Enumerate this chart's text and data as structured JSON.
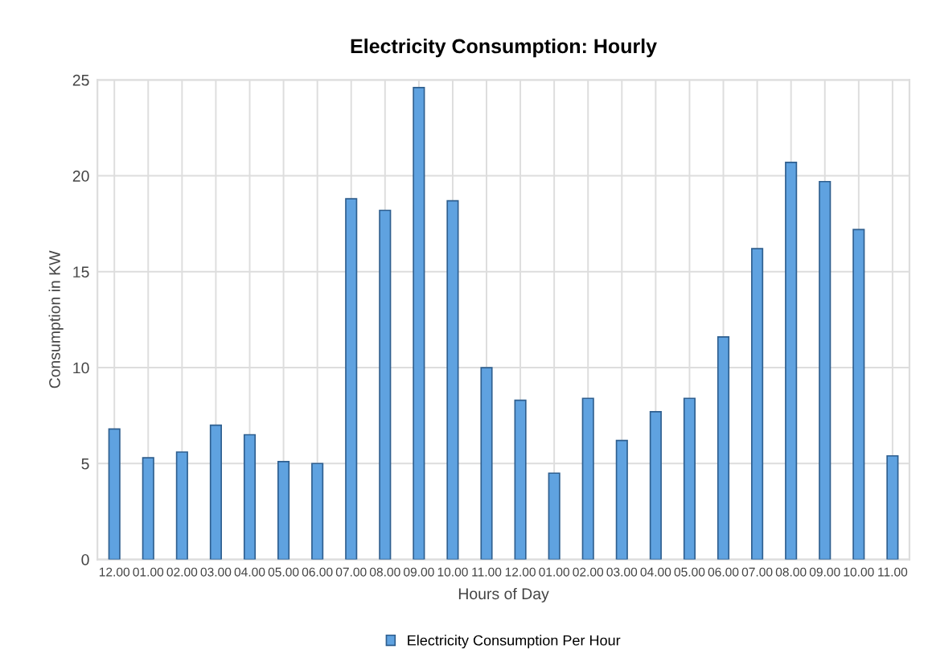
{
  "chart_data": {
    "type": "bar",
    "title": "Electricity Consumption: Hourly",
    "xlabel": "Hours of Day",
    "ylabel": "Consumption in KW",
    "categories": [
      "12.00",
      "01.00",
      "02.00",
      "03.00",
      "04.00",
      "05.00",
      "06.00",
      "07.00",
      "08.00",
      "09.00",
      "10.00",
      "11.00",
      "12.00",
      "01.00",
      "02.00",
      "03.00",
      "04.00",
      "05.00",
      "06.00",
      "07.00",
      "08.00",
      "09.00",
      "10.00",
      "11.00"
    ],
    "series": [
      {
        "name": "Electricity Consumption Per Hour",
        "color": "#5fa2e0",
        "values": [
          6.8,
          5.3,
          5.6,
          7.0,
          6.5,
          5.1,
          5.0,
          18.8,
          18.2,
          24.6,
          18.7,
          10.0,
          8.3,
          4.5,
          8.4,
          6.2,
          7.7,
          8.4,
          11.6,
          16.2,
          20.7,
          19.7,
          17.2,
          5.4
        ]
      }
    ],
    "ylim": [
      0,
      25
    ],
    "yticks": [
      0,
      5,
      10,
      15,
      20,
      25
    ],
    "grid": true,
    "legend": "bottom"
  }
}
